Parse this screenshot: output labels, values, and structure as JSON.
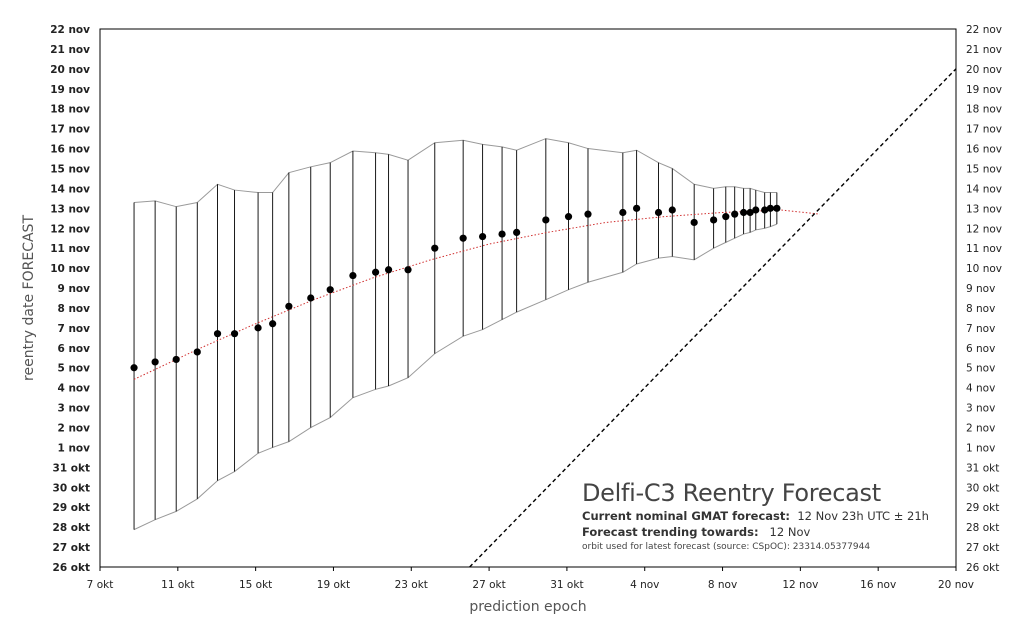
{
  "chart_data": {
    "type": "scatter",
    "title": "Delfi-C3 Reentry Forecast",
    "xlabel": "prediction epoch",
    "ylabel": "reentry date FORECAST",
    "x_ticks": [
      "7 okt",
      "11 okt",
      "15 okt",
      "19 okt",
      "23 okt",
      "27 okt",
      "31 okt",
      "4 nov",
      "8 nov",
      "12 nov",
      "16 nov",
      "20 nov"
    ],
    "y_ticks": [
      "26 okt",
      "27 okt",
      "28 okt",
      "29 okt",
      "30 okt",
      "31 okt",
      "1 nov",
      "2 nov",
      "3 nov",
      "4 nov",
      "5 nov",
      "6 nov",
      "7 nov",
      "8 nov",
      "9 nov",
      "10 nov",
      "11 nov",
      "12 nov",
      "13 nov",
      "14 nov",
      "15 nov",
      "16 nov",
      "17 nov",
      "18 nov",
      "19 nov",
      "20 nov",
      "21 nov",
      "22 nov"
    ],
    "x_range": [
      "7 okt",
      "20 nov"
    ],
    "y_range": [
      "26 okt",
      "22 nov"
    ],
    "grid": false,
    "series": [
      {
        "marker": "filled-circle",
        "color": "#000000",
        "points": [
          {
            "x": "8 okt 18h",
            "y": "5 nov 00h",
            "lower": "27 okt 21h",
            "upper": "13 nov 07h"
          },
          {
            "x": "9 okt 20h",
            "y": "5 nov 07h",
            "lower": "28 okt 09h",
            "upper": "13 nov 09h"
          },
          {
            "x": "10 okt 22h",
            "y": "5 nov 10h",
            "lower": "28 okt 19h",
            "upper": "13 nov 02h"
          },
          {
            "x": "12 okt 00h",
            "y": "5 nov 19h",
            "lower": "29 okt 10h",
            "upper": "13 nov 07h"
          },
          {
            "x": "13 okt 01h",
            "y": "6 nov 17h",
            "lower": "30 okt 08h",
            "upper": "14 nov 05h"
          },
          {
            "x": "13 okt 22h",
            "y": "6 nov 17h",
            "lower": "30 okt 19h",
            "upper": "13 nov 22h"
          },
          {
            "x": "15 okt 03h",
            "y": "7 nov 00h",
            "lower": "31 okt 17h",
            "upper": "13 nov 19h"
          },
          {
            "x": "15 okt 21h",
            "y": "7 nov 05h",
            "lower": "1 nov 00h",
            "upper": "13 nov 19h"
          },
          {
            "x": "16 okt 17h",
            "y": "8 nov 02h",
            "lower": "1 nov 07h",
            "upper": "14 nov 19h"
          },
          {
            "x": "17 okt 20h",
            "y": "8 nov 12h",
            "lower": "2 nov 00h",
            "upper": "15 nov 02h"
          },
          {
            "x": "18 okt 20h",
            "y": "8 nov 22h",
            "lower": "2 nov 12h",
            "upper": "15 nov 07h"
          },
          {
            "x": "20 okt 00h",
            "y": "9 nov 15h",
            "lower": "3 nov 12h",
            "upper": "15 nov 21h"
          },
          {
            "x": "21 okt 04h",
            "y": "9 nov 19h",
            "lower": "3 nov 22h",
            "upper": "15 nov 19h"
          },
          {
            "x": "21 okt 20h",
            "y": "9 nov 22h",
            "lower": "4 nov 02h",
            "upper": "15 nov 17h"
          },
          {
            "x": "22 okt 20h",
            "y": "9 nov 22h",
            "lower": "4 nov 12h",
            "upper": "15 nov 10h"
          },
          {
            "x": "24 okt 05h",
            "y": "11 nov 00h",
            "lower": "5 nov 17h",
            "upper": "16 nov 07h"
          },
          {
            "x": "25 okt 16h",
            "y": "11 nov 12h",
            "lower": "6 nov 14h",
            "upper": "16 nov 10h"
          },
          {
            "x": "26 okt 16h",
            "y": "11 nov 14h",
            "lower": "6 nov 22h",
            "upper": "16 nov 05h"
          },
          {
            "x": "27 okt 16h",
            "y": "11 nov 17h",
            "lower": "7 nov 10h",
            "upper": "16 nov 02h"
          },
          {
            "x": "28 okt 10h",
            "y": "11 nov 19h",
            "lower": "7 nov 19h",
            "upper": "15 nov 22h"
          },
          {
            "x": "29 okt 22h",
            "y": "12 nov 10h",
            "lower": "8 nov 10h",
            "upper": "16 nov 12h"
          },
          {
            "x": "31 okt 02h",
            "y": "12 nov 14h",
            "lower": "8 nov 22h",
            "upper": "16 nov 07h"
          },
          {
            "x": "1 nov 02h",
            "y": "12 nov 17h",
            "lower": "9 nov 07h",
            "upper": "16 nov 00h"
          },
          {
            "x": "2 nov 21h",
            "y": "12 nov 19h",
            "lower": "9 nov 19h",
            "upper": "15 nov 19h"
          },
          {
            "x": "3 nov 14h",
            "y": "13 nov 00h",
            "lower": "10 nov 05h",
            "upper": "15 nov 22h"
          },
          {
            "x": "4 nov 17h",
            "y": "12 nov 19h",
            "lower": "10 nov 12h",
            "upper": "15 nov 07h"
          },
          {
            "x": "5 nov 10h",
            "y": "12 nov 22h",
            "lower": "10 nov 14h",
            "upper": "15 nov 00h"
          },
          {
            "x": "6 nov 13h",
            "y": "12 nov 07h",
            "lower": "10 nov 10h",
            "upper": "14 nov 05h"
          },
          {
            "x": "7 nov 13h",
            "y": "12 nov 10h",
            "lower": "11 nov 00h",
            "upper": "14 nov 00h"
          },
          {
            "x": "8 nov 04h",
            "y": "12 nov 14h",
            "lower": "11 nov 07h",
            "upper": "14 nov 02h"
          },
          {
            "x": "8 nov 15h",
            "y": "12 nov 17h",
            "lower": "11 nov 12h",
            "upper": "14 nov 02h"
          },
          {
            "x": "9 nov 02h",
            "y": "12 nov 19h",
            "lower": "11 nov 17h",
            "upper": "14 nov 00h"
          },
          {
            "x": "9 nov 10h",
            "y": "12 nov 19h",
            "lower": "11 nov 19h",
            "upper": "14 nov 00h"
          },
          {
            "x": "9 nov 17h",
            "y": "12 nov 22h",
            "lower": "11 nov 22h",
            "upper": "13 nov 22h"
          },
          {
            "x": "10 nov 04h",
            "y": "12 nov 22h",
            "lower": "12 nov 00h",
            "upper": "13 nov 19h"
          },
          {
            "x": "10 nov 11h",
            "y": "13 nov 00h",
            "lower": "12 nov 02h",
            "upper": "13 nov 19h"
          },
          {
            "x": "10 nov 19h",
            "y": "13 nov 00h",
            "lower": "12 nov 05h",
            "upper": "13 nov 19h"
          }
        ]
      }
    ],
    "trend_line": {
      "style": "dotted",
      "color": "#d03030",
      "points": [
        {
          "x": "8 okt 18h",
          "y": "4 nov 10h"
        },
        {
          "x": "12 okt 00h",
          "y": "5 nov 22h"
        },
        {
          "x": "15 okt 00h",
          "y": "7 nov 05h"
        },
        {
          "x": "18 okt 00h",
          "y": "8 nov 10h"
        },
        {
          "x": "21 okt 00h",
          "y": "9 nov 12h"
        },
        {
          "x": "24 okt 00h",
          "y": "10 nov 10h"
        },
        {
          "x": "27 okt 00h",
          "y": "11 nov 05h"
        },
        {
          "x": "30 okt 00h",
          "y": "11 nov 19h"
        },
        {
          "x": "2 nov 00h",
          "y": "12 nov 07h"
        },
        {
          "x": "5 nov 00h",
          "y": "12 nov 14h"
        },
        {
          "x": "8 nov 00h",
          "y": "12 nov 19h"
        },
        {
          "x": "11 nov 00h",
          "y": "12 nov 22h"
        },
        {
          "x": "13 nov 00h",
          "y": "12 nov 17h"
        }
      ]
    },
    "reference_line": {
      "style": "dashed",
      "color": "#000000",
      "meaning": "reentry date = prediction epoch",
      "from": {
        "x": "26 okt",
        "y": "26 okt"
      },
      "to": {
        "x": "20 nov",
        "y": "20 nov"
      }
    },
    "annotations": {
      "title": "Delfi-C3 Reentry Forecast",
      "nominal_label": "Current nominal  GMAT forecast:",
      "nominal_value": "12 Nov 23h UTC ± 21h",
      "trend_label": "Forecast trending towards:",
      "trend_value": "12 Nov",
      "orbit_note": "orbit used for latest forecast (source: CSpOC):  23314.05377944"
    }
  }
}
